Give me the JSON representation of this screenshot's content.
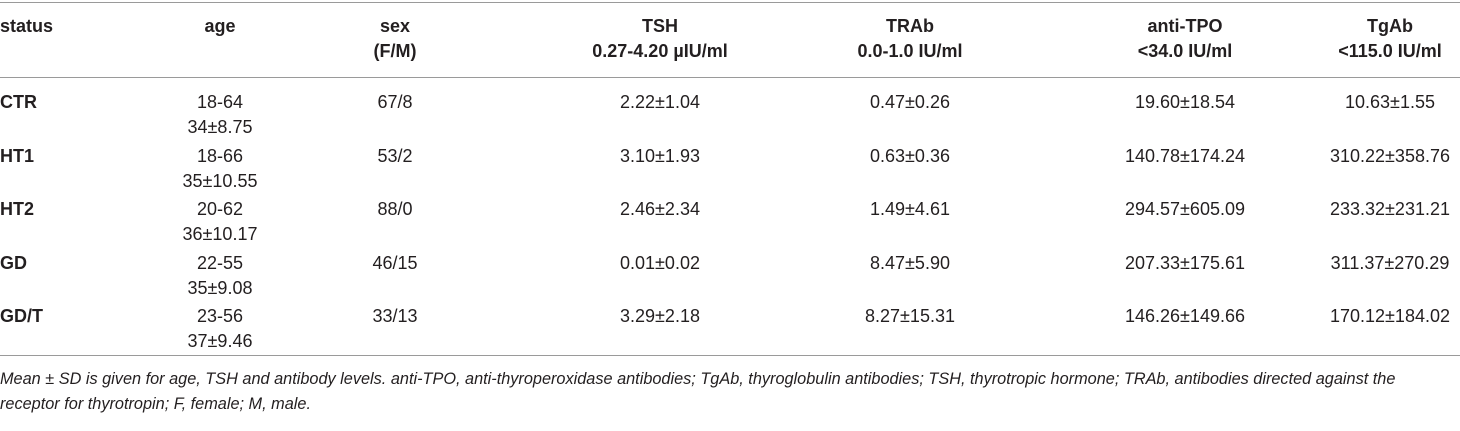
{
  "table": {
    "headers": {
      "status": "status",
      "age": "age",
      "sex": "sex\n(F/M)",
      "tsh": "TSH\n0.27-4.20 µIU/ml",
      "trab": "TRAb\n0.0-1.0 IU/ml",
      "tpo": "anti-TPO\n<34.0 IU/ml",
      "tgab": "TgAb\n<115.0 IU/ml"
    },
    "rows": [
      {
        "status": "CTR",
        "age_range": "18-64",
        "age_mean": "34±8.75",
        "sex": "67/8",
        "tsh": "2.22±1.04",
        "trab": "0.47±0.26",
        "tpo": "19.60±18.54",
        "tgab": "10.63±1.55"
      },
      {
        "status": "HT1",
        "age_range": "18-66",
        "age_mean": "35±10.55",
        "sex": "53/2",
        "tsh": "3.10±1.93",
        "trab": "0.63±0.36",
        "tpo": "140.78±174.24",
        "tgab": "310.22±358.76"
      },
      {
        "status": "HT2",
        "age_range": "20-62",
        "age_mean": "36±10.17",
        "sex": "88/0",
        "tsh": "2.46±2.34",
        "trab": "1.49±4.61",
        "tpo": "294.57±605.09",
        "tgab": "233.32±231.21"
      },
      {
        "status": "GD",
        "age_range": "22-55",
        "age_mean": "35±9.08",
        "sex": "46/15",
        "tsh": "0.01±0.02",
        "trab": "8.47±5.90",
        "tpo": "207.33±175.61",
        "tgab": "311.37±270.29"
      },
      {
        "status": "GD/T",
        "age_range": "23-56",
        "age_mean": "37±9.46",
        "sex": "33/13",
        "tsh": "3.29±2.18",
        "trab": "8.27±15.31",
        "tpo": "146.26±149.66",
        "tgab": "170.12±184.02"
      }
    ]
  },
  "footnote": "Mean ± SD is given for age, TSH and antibody levels. anti-TPO, anti-thyroperoxidase antibodies; TgAb, thyroglobulin antibodies; TSH, thyrotropic hormone; TRAb, antibodies directed against the receptor for thyrotropin; F, female; M, male."
}
